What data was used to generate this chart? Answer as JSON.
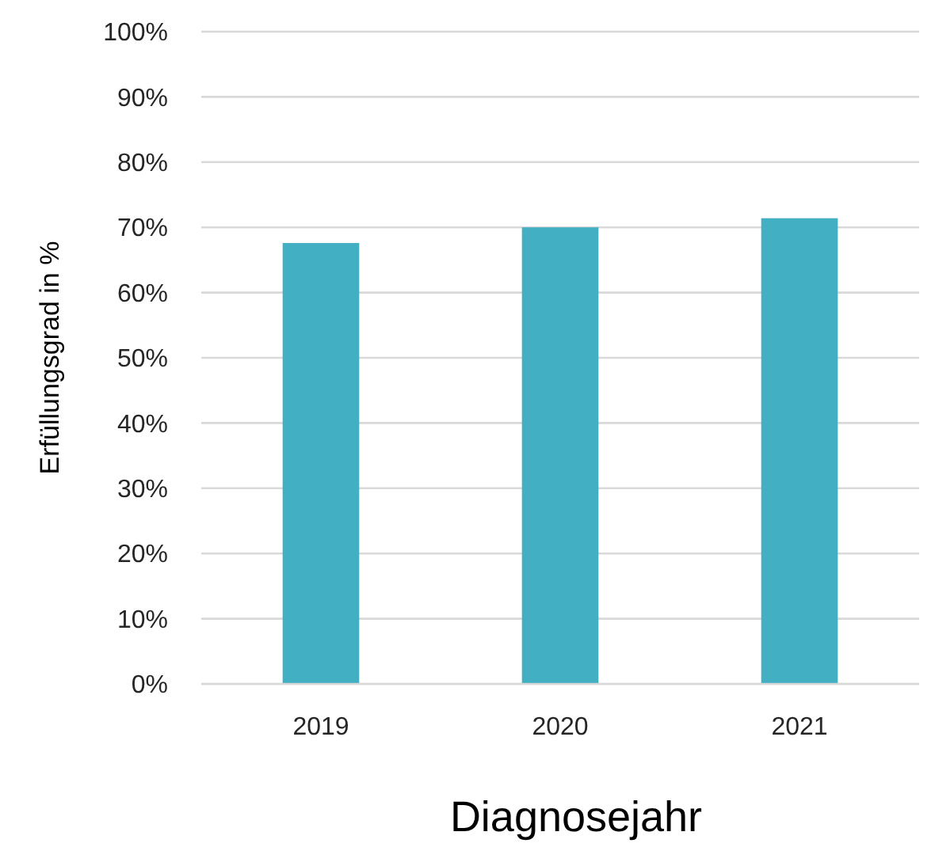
{
  "chart_data": {
    "type": "bar",
    "xlabel": "Diagnosejahr",
    "ylabel": "Erfüllungsgrad in %",
    "categories": [
      "2019",
      "2020",
      "2021"
    ],
    "values": [
      67.6,
      70,
      71.4
    ],
    "color": "#43afc2",
    "ylim": [
      0,
      100
    ],
    "yticks": [
      {
        "value": 0,
        "label": "0%"
      },
      {
        "value": 10,
        "label": "10%"
      },
      {
        "value": 20,
        "label": "20%"
      },
      {
        "value": 30,
        "label": "30%"
      },
      {
        "value": 40,
        "label": "40%"
      },
      {
        "value": 50,
        "label": "50%"
      },
      {
        "value": 60,
        "label": "60%"
      },
      {
        "value": 70,
        "label": "70%"
      },
      {
        "value": 80,
        "label": "80%"
      },
      {
        "value": 90,
        "label": "90%"
      },
      {
        "value": 100,
        "label": "100%"
      }
    ],
    "grid": "y"
  }
}
